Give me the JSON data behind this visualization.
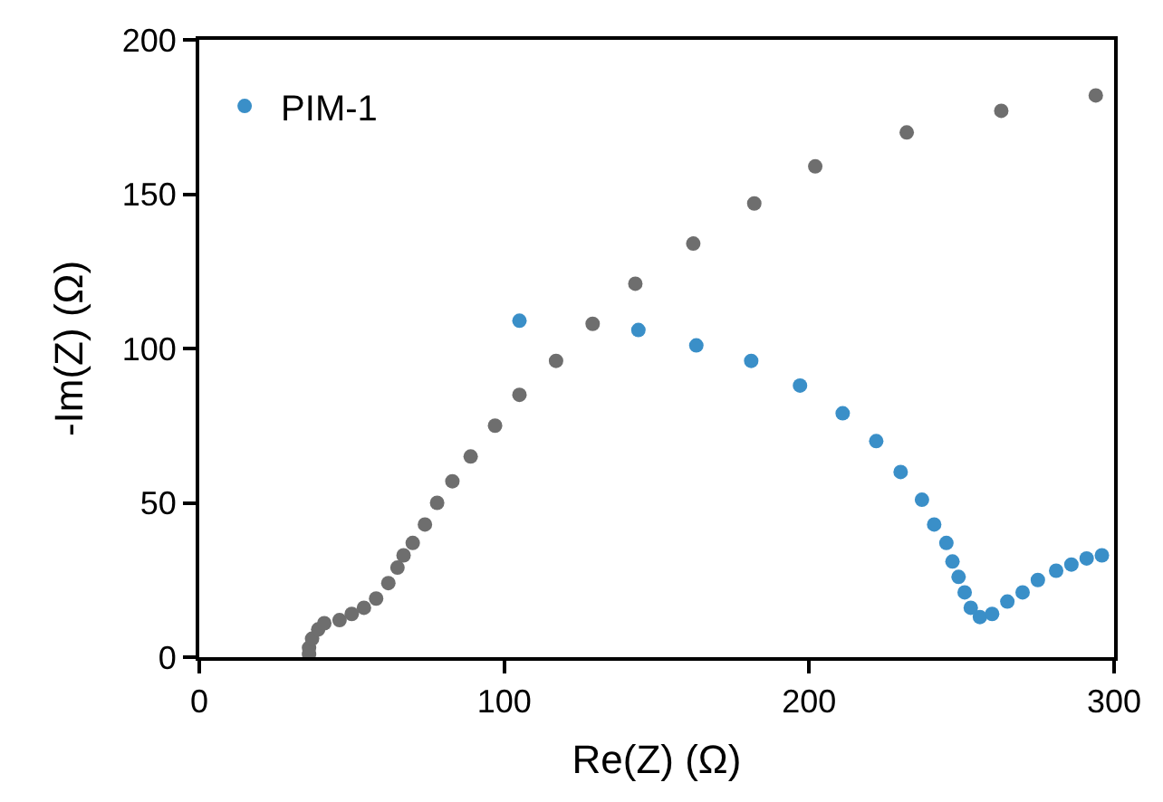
{
  "chart_data": {
    "type": "scatter",
    "xlabel": "Re(Z) (Ω)",
    "ylabel": "-Im(Z) (Ω)",
    "xlim": [
      0,
      300
    ],
    "xticks": [
      0,
      100,
      200,
      300
    ],
    "ylim": [
      0,
      200
    ],
    "yticks": [
      0,
      50,
      100,
      150,
      200
    ],
    "legend": "top left",
    "series": [
      {
        "name": "PIM-1",
        "color": "#3a8fc8",
        "x": [
          105,
          144,
          163,
          181,
          197,
          211,
          222,
          230,
          237,
          241,
          245,
          247,
          249,
          251,
          253,
          256,
          260,
          265,
          270,
          275,
          281,
          286,
          291,
          296
        ],
        "values": [
          109,
          106,
          101,
          96,
          88,
          79,
          70,
          60,
          51,
          43,
          37,
          31,
          26,
          21,
          16,
          13,
          14,
          18,
          21,
          25,
          28,
          30,
          32,
          33
        ]
      },
      {
        "color": "#6e6e6e",
        "x": [
          36,
          36,
          37,
          39,
          41,
          46,
          50,
          54,
          58,
          62,
          65,
          67,
          70,
          74,
          78,
          83,
          89,
          97,
          105,
          117,
          129,
          143,
          162,
          182,
          202,
          232,
          263,
          294
        ],
        "values": [
          1,
          3,
          6,
          9,
          11,
          12,
          14,
          16,
          19,
          24,
          29,
          33,
          37,
          43,
          50,
          57,
          65,
          75,
          85,
          96,
          108,
          121,
          134,
          147,
          159,
          170,
          177,
          182
        ]
      }
    ]
  }
}
